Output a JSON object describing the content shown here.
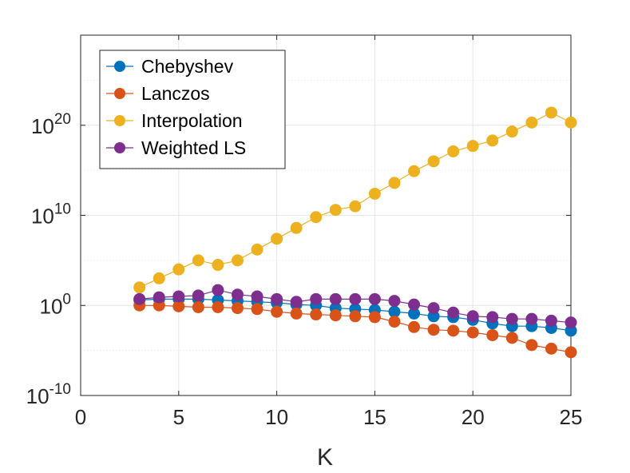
{
  "chart_data": {
    "type": "line",
    "xlabel": "K",
    "ylabel": "",
    "title": "",
    "xlim": [
      0,
      25
    ],
    "ylim_exponent": [
      -10,
      30
    ],
    "y_scale": "log",
    "x_ticks": [
      0,
      5,
      10,
      15,
      20,
      25
    ],
    "y_tick_exponents": [
      -10,
      0,
      10,
      20
    ],
    "y_tick_base": "10",
    "grid": true,
    "legend_position": "top-left",
    "x": [
      3,
      4,
      5,
      6,
      7,
      8,
      9,
      10,
      11,
      12,
      13,
      14,
      15,
      16,
      17,
      18,
      19,
      20,
      21,
      22,
      23,
      24,
      25
    ],
    "series": [
      {
        "name": "Chebyshev",
        "color": "#0072BD",
        "log10_values": [
          0.6,
          0.7,
          0.7,
          0.7,
          0.6,
          0.5,
          0.4,
          0.3,
          0.1,
          0.0,
          -0.3,
          -0.4,
          -0.5,
          -0.7,
          -0.9,
          -1.2,
          -1.3,
          -1.6,
          -2.0,
          -2.3,
          -2.3,
          -2.5,
          -2.8
        ]
      },
      {
        "name": "Lanczos",
        "color": "#D95319",
        "log10_values": [
          0.0,
          0.0,
          -0.1,
          -0.2,
          -0.2,
          -0.3,
          -0.4,
          -0.7,
          -0.9,
          -1.0,
          -1.1,
          -1.2,
          -1.3,
          -1.8,
          -2.4,
          -2.7,
          -2.8,
          -3.0,
          -3.3,
          -3.6,
          -4.4,
          -4.8,
          -5.2
        ]
      },
      {
        "name": "Interpolation",
        "color": "#EDB120",
        "log10_values": [
          2.0,
          3.0,
          4.0,
          5.0,
          4.5,
          5.0,
          6.2,
          7.4,
          8.6,
          9.8,
          10.6,
          11.0,
          12.4,
          13.6,
          14.9,
          16.0,
          17.1,
          17.7,
          18.3,
          19.3,
          20.3,
          21.4,
          20.3
        ]
      },
      {
        "name": "Weighted LS",
        "color": "#7E2F8E",
        "log10_values": [
          0.7,
          0.9,
          1.0,
          1.1,
          1.7,
          1.2,
          1.0,
          0.7,
          0.4,
          0.7,
          0.7,
          0.7,
          0.7,
          0.5,
          0.1,
          -0.3,
          -0.8,
          -1.2,
          -1.3,
          -1.5,
          -1.5,
          -1.7,
          -1.9
        ]
      }
    ]
  }
}
